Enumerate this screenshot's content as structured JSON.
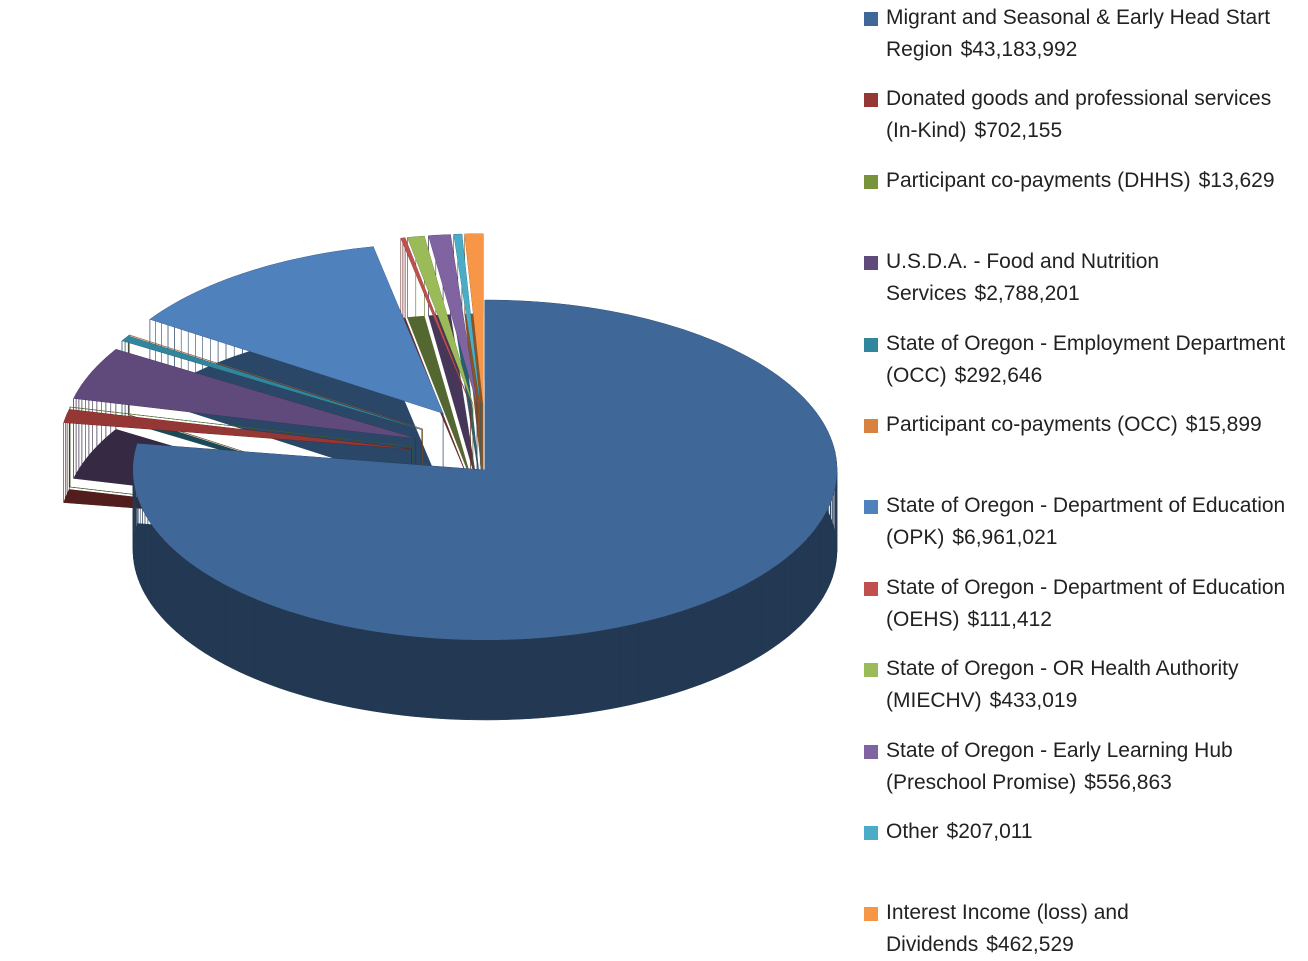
{
  "chart_data": {
    "type": "pie3d",
    "categories": [
      "Migrant and Seasonal & Early Head Start Region",
      "Donated goods and professional services (In-Kind)",
      "Participant co-payments (DHHS)",
      "U.S.D.A. - Food and Nutrition Services",
      "State of Oregon - Employment Department (OCC)",
      "Participant co-payments (OCC)",
      "State of Oregon - Department of Education (OPK)",
      "State of Oregon - Department of Education (OEHS)",
      "State of Oregon - OR Health Authority (MIECHV)",
      "State of Oregon - Early Learning Hub (Preschool Promise)",
      "Other",
      "Interest Income (loss) and Dividends"
    ],
    "values": [
      43183992,
      702155,
      13629,
      2788201,
      292646,
      15899,
      6961021,
      111412,
      433019,
      556863,
      207011,
      462529
    ],
    "value_labels": [
      "$43,183,992",
      "$702,155",
      "$13,629",
      "$2,788,201",
      "$292,646",
      "$15,899",
      "$6,961,021",
      "$111,412",
      "$433,019",
      "$556,863",
      "$207,011",
      "$462,529"
    ],
    "colors": [
      "#3f6797",
      "#953735",
      "#77933c",
      "#604a7b",
      "#31859c",
      "#d9823f",
      "#4f81bd",
      "#c0504d",
      "#9bbb59",
      "#8064a2",
      "#4bacc6",
      "#f79646"
    ],
    "legend": "right"
  }
}
